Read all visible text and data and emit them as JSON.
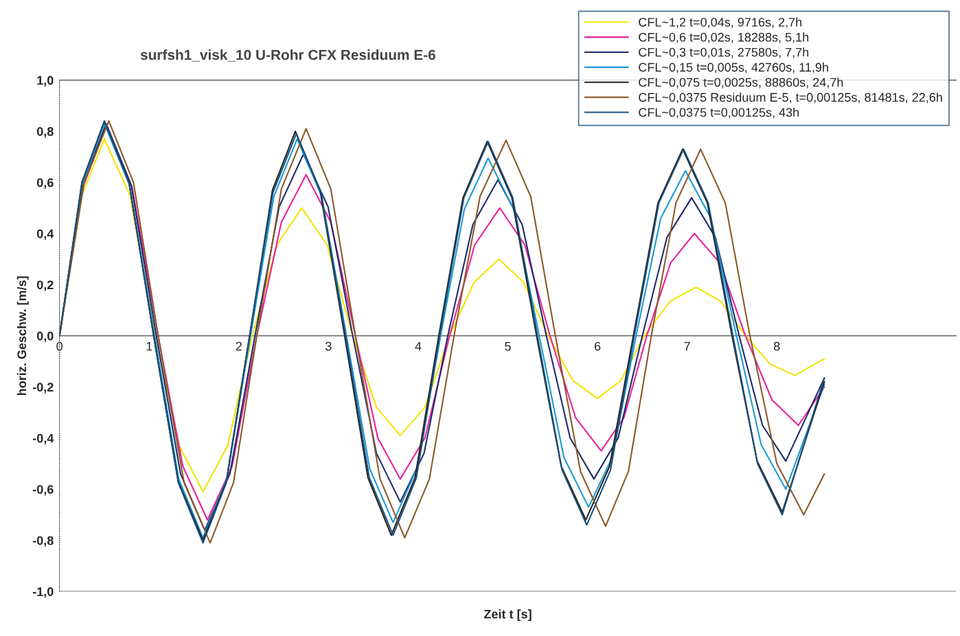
{
  "chart_data": {
    "type": "line",
    "title": "surfsh1_visk_10 U-Rohr CFX Residuum E-6",
    "xlabel": "Zeit t [s]",
    "ylabel": "horiz. Geschw. [m/s]",
    "xlim": [
      0,
      10
    ],
    "xticks": [
      0,
      1,
      2,
      3,
      4,
      5,
      6,
      7,
      8
    ],
    "ylim": [
      -1,
      1
    ],
    "yticks": [
      {
        "value": -1,
        "label": "-1,0"
      },
      {
        "value": -0.8,
        "label": "-0,8"
      },
      {
        "value": -0.6,
        "label": "-0,6"
      },
      {
        "value": -0.4,
        "label": "-0,4"
      },
      {
        "value": -0.2,
        "label": "-0,2"
      },
      {
        "value": 0,
        "label": "0,0"
      },
      {
        "value": 0.2,
        "label": "0,2"
      },
      {
        "value": 0.4,
        "label": "0,4"
      },
      {
        "value": 0.6,
        "label": "0,6"
      },
      {
        "value": 0.8,
        "label": "0,8"
      },
      {
        "value": 1,
        "label": "1,0"
      }
    ],
    "grid": false,
    "legend": "top right",
    "marker": "none",
    "line_style": "solid",
    "series": [
      {
        "name": "CFL~1,2 t=0,04s, 9716s, 2,7h",
        "color": "#f2e200",
        "x": [
          0,
          0.25,
          0.5,
          0.785,
          1.07,
          1.335,
          1.6,
          1.875,
          2.15,
          2.425,
          2.7,
          2.985,
          3.27,
          3.535,
          3.8,
          4.075,
          4.35,
          4.625,
          4.9,
          5.175,
          5.45,
          5.725,
          6.0,
          6.26,
          6.52,
          6.81,
          7.1,
          7.375,
          7.65,
          7.925,
          8.2,
          8.53
        ],
        "values": [
          0,
          0.55,
          0.77,
          0.55,
          0,
          -0.43,
          -0.61,
          -0.43,
          0,
          0.355,
          0.5,
          0.355,
          0,
          -0.28,
          -0.39,
          -0.28,
          0,
          0.21,
          0.3,
          0.21,
          0,
          -0.175,
          -0.245,
          -0.175,
          0,
          0.135,
          0.19,
          0.135,
          0,
          -0.11,
          -0.155,
          -0.09
        ]
      },
      {
        "name": "CFL~0,6 t=0,02s, 18288s, 5,1h",
        "color": "#e8229a",
        "x": [
          0,
          0.26,
          0.52,
          0.81,
          1.1,
          1.375,
          1.65,
          1.925,
          2.2,
          2.475,
          2.75,
          3.025,
          3.3,
          3.55,
          3.8,
          4.075,
          4.35,
          4.63,
          4.91,
          5.19,
          5.47,
          5.755,
          6.04,
          6.295,
          6.55,
          6.815,
          7.08,
          7.365,
          7.65,
          7.945,
          8.24,
          8.53
        ],
        "values": [
          0,
          0.58,
          0.82,
          0.58,
          0,
          -0.51,
          -0.72,
          -0.51,
          0,
          0.445,
          0.63,
          0.445,
          0,
          -0.4,
          -0.56,
          -0.4,
          0,
          0.355,
          0.5,
          0.355,
          0,
          -0.32,
          -0.45,
          -0.32,
          0,
          0.285,
          0.4,
          0.285,
          0,
          -0.25,
          -0.35,
          -0.2
        ]
      },
      {
        "name": "CFL~0,3 t=0,01s, 27580s, 7,7h",
        "color": "#1f2a6b",
        "x": [
          0,
          0.26,
          0.52,
          0.8,
          1.08,
          1.35,
          1.62,
          1.9,
          2.18,
          2.45,
          2.72,
          2.995,
          3.27,
          3.535,
          3.8,
          4.065,
          4.33,
          4.61,
          4.89,
          5.16,
          5.43,
          5.695,
          5.96,
          6.23,
          6.5,
          6.775,
          7.05,
          7.315,
          7.58,
          7.84,
          8.1,
          8.53
        ],
        "values": [
          0,
          0.59,
          0.83,
          0.59,
          0,
          -0.54,
          -0.76,
          -0.54,
          0,
          0.505,
          0.71,
          0.505,
          0,
          -0.46,
          -0.65,
          -0.46,
          0,
          0.435,
          0.61,
          0.435,
          0,
          -0.4,
          -0.56,
          -0.4,
          0,
          0.385,
          0.54,
          0.385,
          0,
          -0.35,
          -0.49,
          -0.165
        ]
      },
      {
        "name": "CFL~0,15 t=0,005s, 42760s, 11,9h",
        "color": "#1a9ad6",
        "x": [
          0,
          0.25,
          0.5,
          0.78,
          1.06,
          1.33,
          1.6,
          1.865,
          2.13,
          2.39,
          2.65,
          2.925,
          3.2,
          3.46,
          3.72,
          3.985,
          4.25,
          4.515,
          4.78,
          5.065,
          5.35,
          5.625,
          5.9,
          6.165,
          6.43,
          6.705,
          6.98,
          7.265,
          7.55,
          7.825,
          8.1,
          8.53
        ],
        "values": [
          0,
          0.59,
          0.83,
          0.59,
          0,
          -0.56,
          -0.79,
          -0.56,
          0,
          0.545,
          0.77,
          0.545,
          0,
          -0.52,
          -0.73,
          -0.52,
          0,
          0.495,
          0.695,
          0.495,
          0,
          -0.475,
          -0.67,
          -0.475,
          0,
          0.46,
          0.645,
          0.46,
          0,
          -0.425,
          -0.6,
          -0.19
        ]
      },
      {
        "name": "CFL~0,075 t=0,0025s, 88860s, 24,7h",
        "color": "#222222",
        "x": [
          0,
          0.25,
          0.5,
          0.775,
          1.05,
          1.325,
          1.6,
          1.86,
          2.12,
          2.375,
          2.63,
          2.905,
          3.18,
          3.44,
          3.7,
          3.965,
          4.23,
          4.5,
          4.77,
          5.045,
          5.32,
          5.595,
          5.87,
          6.135,
          6.4,
          6.675,
          6.95,
          7.225,
          7.5,
          7.78,
          8.06,
          8.53
        ],
        "values": [
          0,
          0.6,
          0.84,
          0.6,
          0,
          -0.57,
          -0.8,
          -0.57,
          0,
          0.57,
          0.8,
          0.57,
          0,
          -0.555,
          -0.78,
          -0.555,
          0,
          0.54,
          0.76,
          0.54,
          0,
          -0.51,
          -0.72,
          -0.51,
          0,
          0.52,
          0.73,
          0.52,
          0,
          -0.49,
          -0.69,
          -0.18
        ]
      },
      {
        "name": "CFL~0,0375 Residuum E-5, t=0,00125s, 81481s, 22,6h",
        "color": "#8a5a2b",
        "x": [
          0,
          0.275,
          0.55,
          0.825,
          1.1,
          1.39,
          1.68,
          1.94,
          2.2,
          2.475,
          2.75,
          3.025,
          3.3,
          3.575,
          3.85,
          4.125,
          4.4,
          4.69,
          4.98,
          5.255,
          5.53,
          5.81,
          6.09,
          6.345,
          6.6,
          6.875,
          7.15,
          7.425,
          7.7,
          8.0,
          8.3,
          8.53
        ],
        "values": [
          0,
          0.6,
          0.84,
          0.6,
          0,
          -0.575,
          -0.81,
          -0.575,
          0,
          0.575,
          0.81,
          0.575,
          0,
          -0.56,
          -0.79,
          -0.56,
          0,
          0.545,
          0.765,
          0.545,
          0,
          -0.53,
          -0.745,
          -0.53,
          0,
          0.52,
          0.73,
          0.52,
          0,
          -0.5,
          -0.7,
          -0.54
        ]
      },
      {
        "name": "CFL~0,0375 t=0,00125s, 43h",
        "color": "#1d4f7a",
        "x": [
          0,
          0.25,
          0.5,
          0.775,
          1.05,
          1.325,
          1.6,
          1.86,
          2.12,
          2.38,
          2.64,
          2.915,
          3.19,
          3.455,
          3.72,
          3.98,
          4.24,
          4.51,
          4.78,
          5.055,
          5.33,
          5.605,
          5.88,
          6.145,
          6.41,
          6.685,
          6.96,
          7.235,
          7.51,
          7.785,
          8.06,
          8.53
        ],
        "values": [
          0,
          0.6,
          0.84,
          0.6,
          0,
          -0.575,
          -0.81,
          -0.575,
          0,
          0.56,
          0.79,
          0.56,
          0,
          -0.555,
          -0.78,
          -0.555,
          0,
          0.54,
          0.76,
          0.54,
          0,
          -0.525,
          -0.74,
          -0.525,
          0,
          0.52,
          0.73,
          0.52,
          0,
          -0.5,
          -0.7,
          -0.165
        ]
      }
    ]
  }
}
